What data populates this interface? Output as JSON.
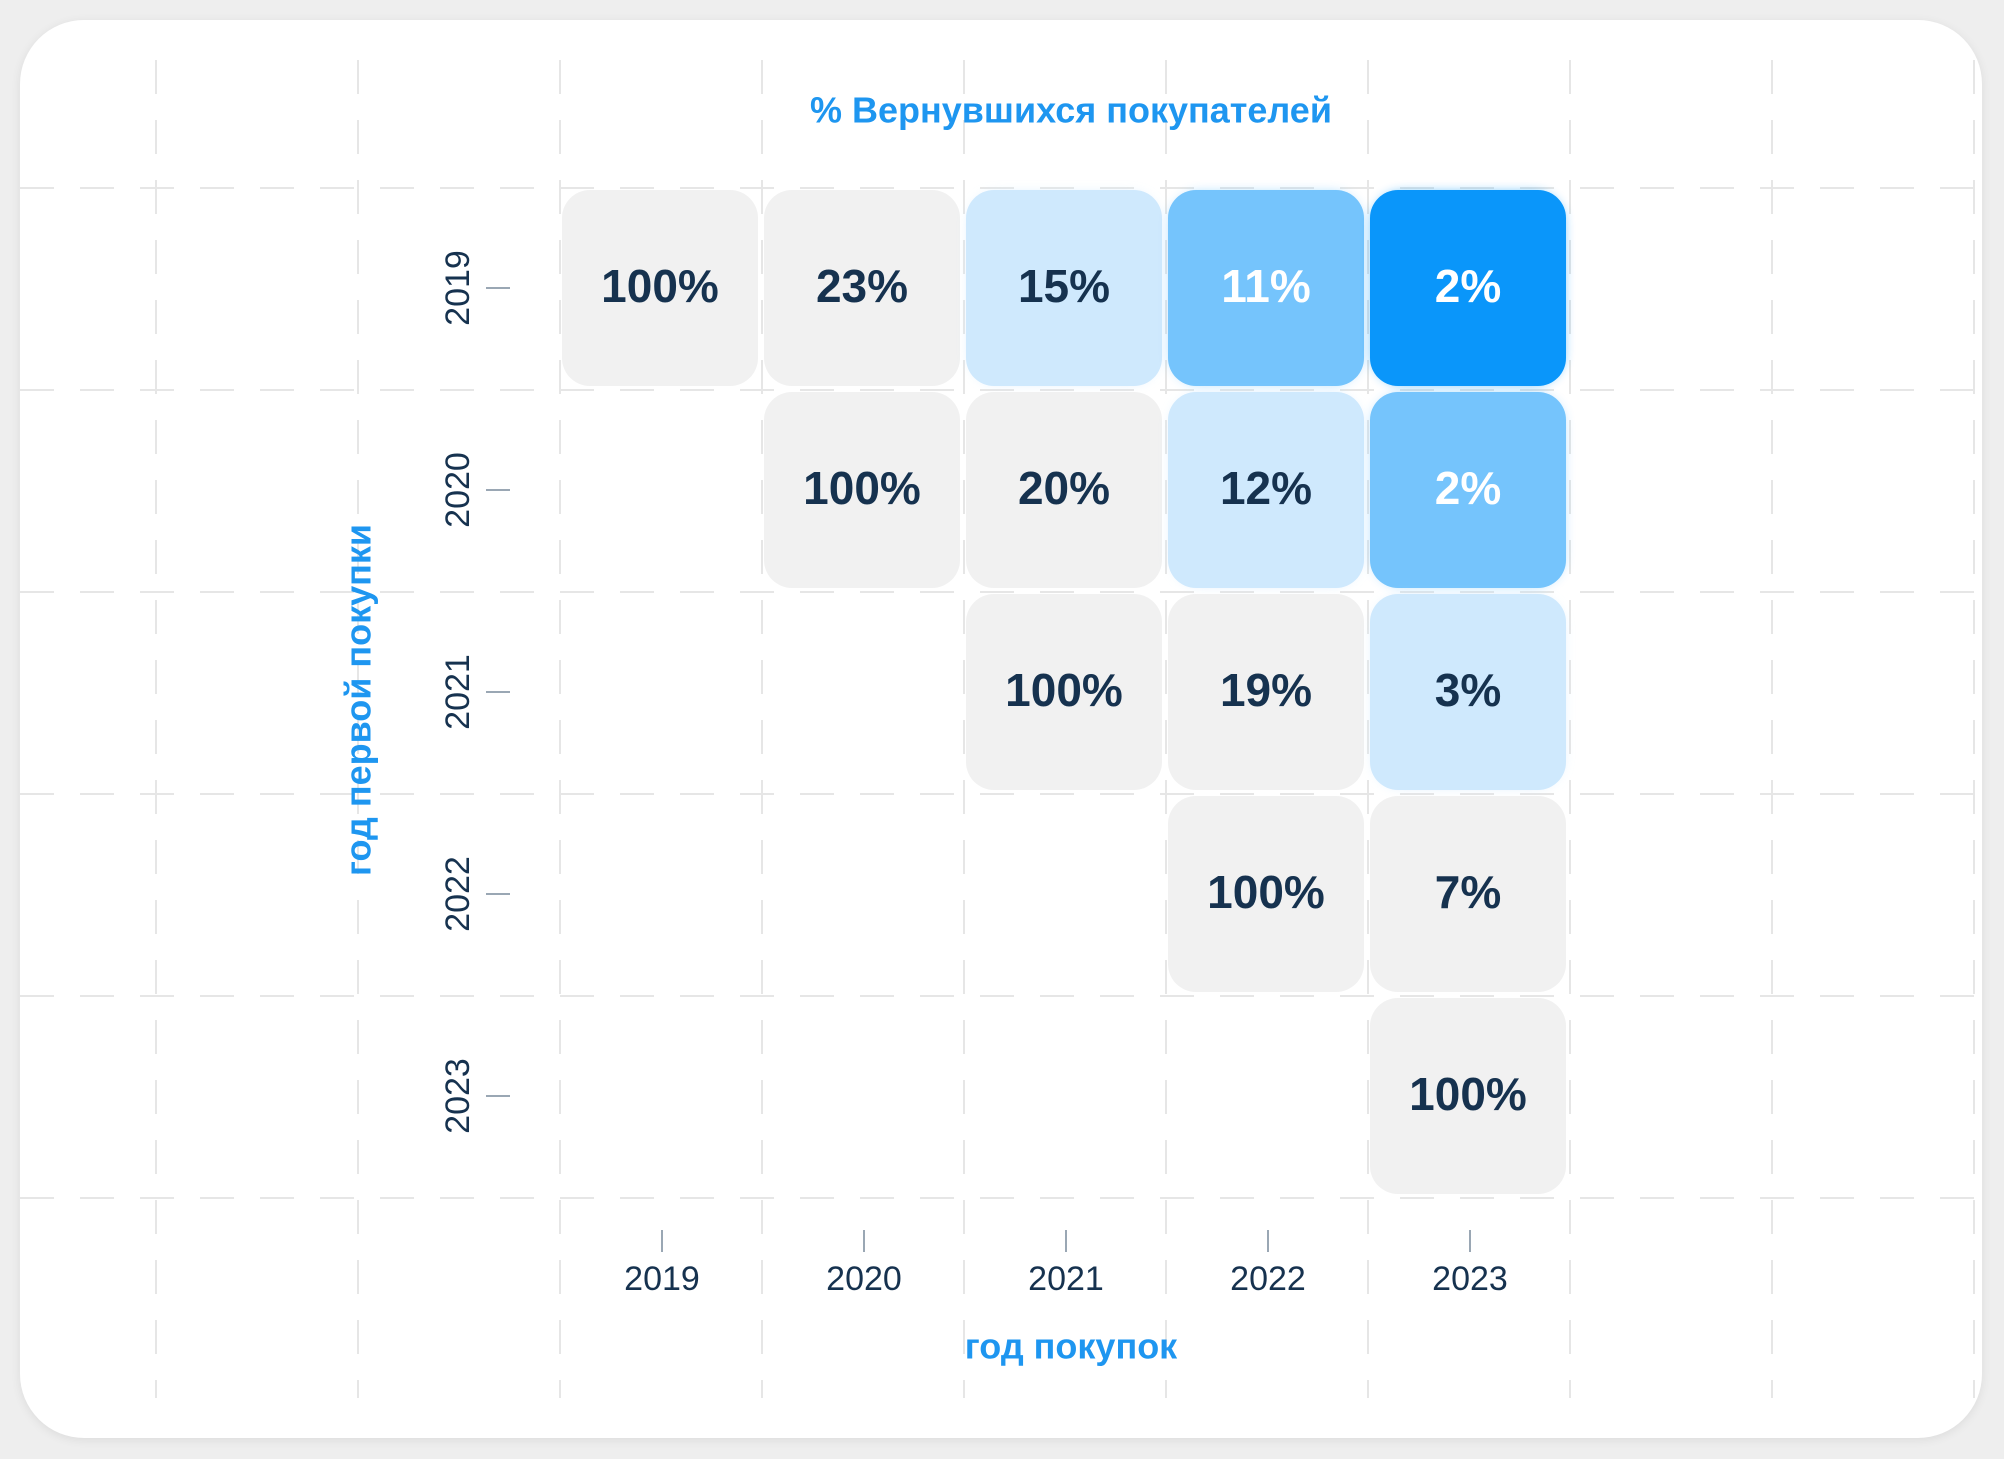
{
  "chart_data": {
    "type": "heatmap",
    "title": "% Вернувшихся покупателей",
    "xlabel": "год покупок",
    "ylabel": "год первой покупки",
    "x": [
      "2019",
      "2020",
      "2021",
      "2022",
      "2023"
    ],
    "y": [
      "2019",
      "2020",
      "2021",
      "2022",
      "2023"
    ],
    "cells": [
      {
        "row": "2019",
        "col": "2019",
        "value": 100,
        "label": "100%"
      },
      {
        "row": "2019",
        "col": "2020",
        "value": 23,
        "label": "23%"
      },
      {
        "row": "2019",
        "col": "2021",
        "value": 15,
        "label": "15%"
      },
      {
        "row": "2019",
        "col": "2022",
        "value": 11,
        "label": "11%"
      },
      {
        "row": "2019",
        "col": "2023",
        "value": 2,
        "label": "2%"
      },
      {
        "row": "2020",
        "col": "2020",
        "value": 100,
        "label": "100%"
      },
      {
        "row": "2020",
        "col": "2021",
        "value": 20,
        "label": "20%"
      },
      {
        "row": "2020",
        "col": "2022",
        "value": 12,
        "label": "12%"
      },
      {
        "row": "2020",
        "col": "2023",
        "value": 2,
        "label": "2%"
      },
      {
        "row": "2021",
        "col": "2021",
        "value": 100,
        "label": "100%"
      },
      {
        "row": "2021",
        "col": "2022",
        "value": 19,
        "label": "19%"
      },
      {
        "row": "2021",
        "col": "2023",
        "value": 3,
        "label": "3%"
      },
      {
        "row": "2022",
        "col": "2022",
        "value": 100,
        "label": "100%"
      },
      {
        "row": "2022",
        "col": "2023",
        "value": 7,
        "label": "7%"
      },
      {
        "row": "2023",
        "col": "2023",
        "value": 100,
        "label": "100%"
      }
    ],
    "grid": true,
    "colors": {
      "accent": "#1e96f0",
      "text_dark": "#16324f",
      "cell_neutral": "#f1f1f1",
      "scale_light": "#cfe9fd",
      "scale_mid": "#75c4fc",
      "scale_strong": "#0a96fa"
    }
  }
}
